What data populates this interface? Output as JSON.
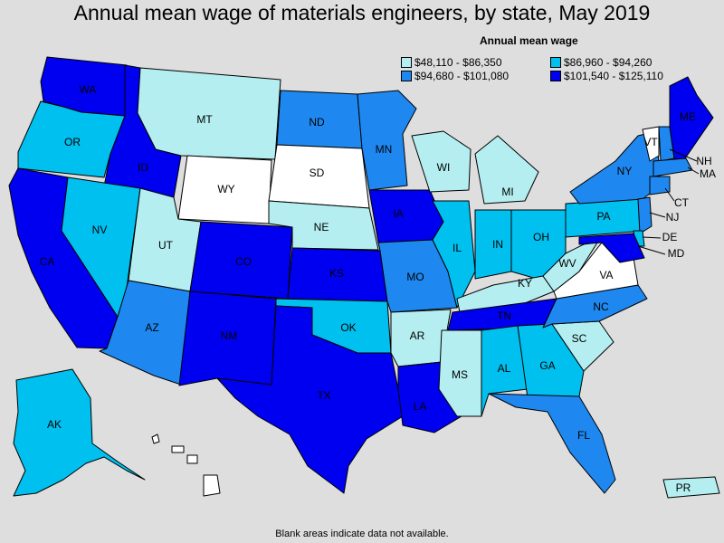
{
  "title": "Annual mean wage of materials engineers, by state, May 2019",
  "legend": {
    "title": "Annual mean wage",
    "items": [
      {
        "label": "$48,110 - $86,350",
        "color": "#b4eef0"
      },
      {
        "label": "$86,960 - $94,260",
        "color": "#00c0f0"
      },
      {
        "label": "$94,680 - $101,080",
        "color": "#1e88f0"
      },
      {
        "label": "$101,540 - $125,110",
        "color": "#0000f0"
      }
    ]
  },
  "footnote": "Blank areas indicate data not available.",
  "states": [
    {
      "abbr": "WA",
      "bin": 3
    },
    {
      "abbr": "OR",
      "bin": 1
    },
    {
      "abbr": "CA",
      "bin": 3
    },
    {
      "abbr": "ID",
      "bin": 3
    },
    {
      "abbr": "NV",
      "bin": 1
    },
    {
      "abbr": "MT",
      "bin": 0
    },
    {
      "abbr": "WY",
      "bin": -1
    },
    {
      "abbr": "UT",
      "bin": 0
    },
    {
      "abbr": "AZ",
      "bin": 2
    },
    {
      "abbr": "CO",
      "bin": 3
    },
    {
      "abbr": "NM",
      "bin": 3
    },
    {
      "abbr": "ND",
      "bin": 2
    },
    {
      "abbr": "SD",
      "bin": -1
    },
    {
      "abbr": "NE",
      "bin": 0
    },
    {
      "abbr": "KS",
      "bin": 3
    },
    {
      "abbr": "OK",
      "bin": 1
    },
    {
      "abbr": "TX",
      "bin": 3
    },
    {
      "abbr": "MN",
      "bin": 2
    },
    {
      "abbr": "IA",
      "bin": 3
    },
    {
      "abbr": "MO",
      "bin": 2
    },
    {
      "abbr": "AR",
      "bin": 0
    },
    {
      "abbr": "LA",
      "bin": 3
    },
    {
      "abbr": "WI",
      "bin": 0
    },
    {
      "abbr": "IL",
      "bin": 1
    },
    {
      "abbr": "MS",
      "bin": 0
    },
    {
      "abbr": "MI",
      "bin": 0
    },
    {
      "abbr": "IN",
      "bin": 1
    },
    {
      "abbr": "OH",
      "bin": 1
    },
    {
      "abbr": "KY",
      "bin": 0
    },
    {
      "abbr": "TN",
      "bin": 3
    },
    {
      "abbr": "AL",
      "bin": 1
    },
    {
      "abbr": "GA",
      "bin": 1
    },
    {
      "abbr": "FL",
      "bin": 2
    },
    {
      "abbr": "SC",
      "bin": 0
    },
    {
      "abbr": "NC",
      "bin": 2
    },
    {
      "abbr": "VA",
      "bin": -1
    },
    {
      "abbr": "WV",
      "bin": 0
    },
    {
      "abbr": "PA",
      "bin": 1
    },
    {
      "abbr": "NY",
      "bin": 2
    },
    {
      "abbr": "VT",
      "bin": -1
    },
    {
      "abbr": "NH",
      "bin": 2
    },
    {
      "abbr": "ME",
      "bin": 3
    },
    {
      "abbr": "MA",
      "bin": 2
    },
    {
      "abbr": "CT",
      "bin": 2
    },
    {
      "abbr": "NJ",
      "bin": 2
    },
    {
      "abbr": "DE",
      "bin": 1
    },
    {
      "abbr": "MD",
      "bin": 3
    },
    {
      "abbr": "AK",
      "bin": 1
    },
    {
      "abbr": "HI",
      "bin": -1
    },
    {
      "abbr": "PR",
      "bin": 0
    }
  ],
  "blank_color": "#ffffff"
}
